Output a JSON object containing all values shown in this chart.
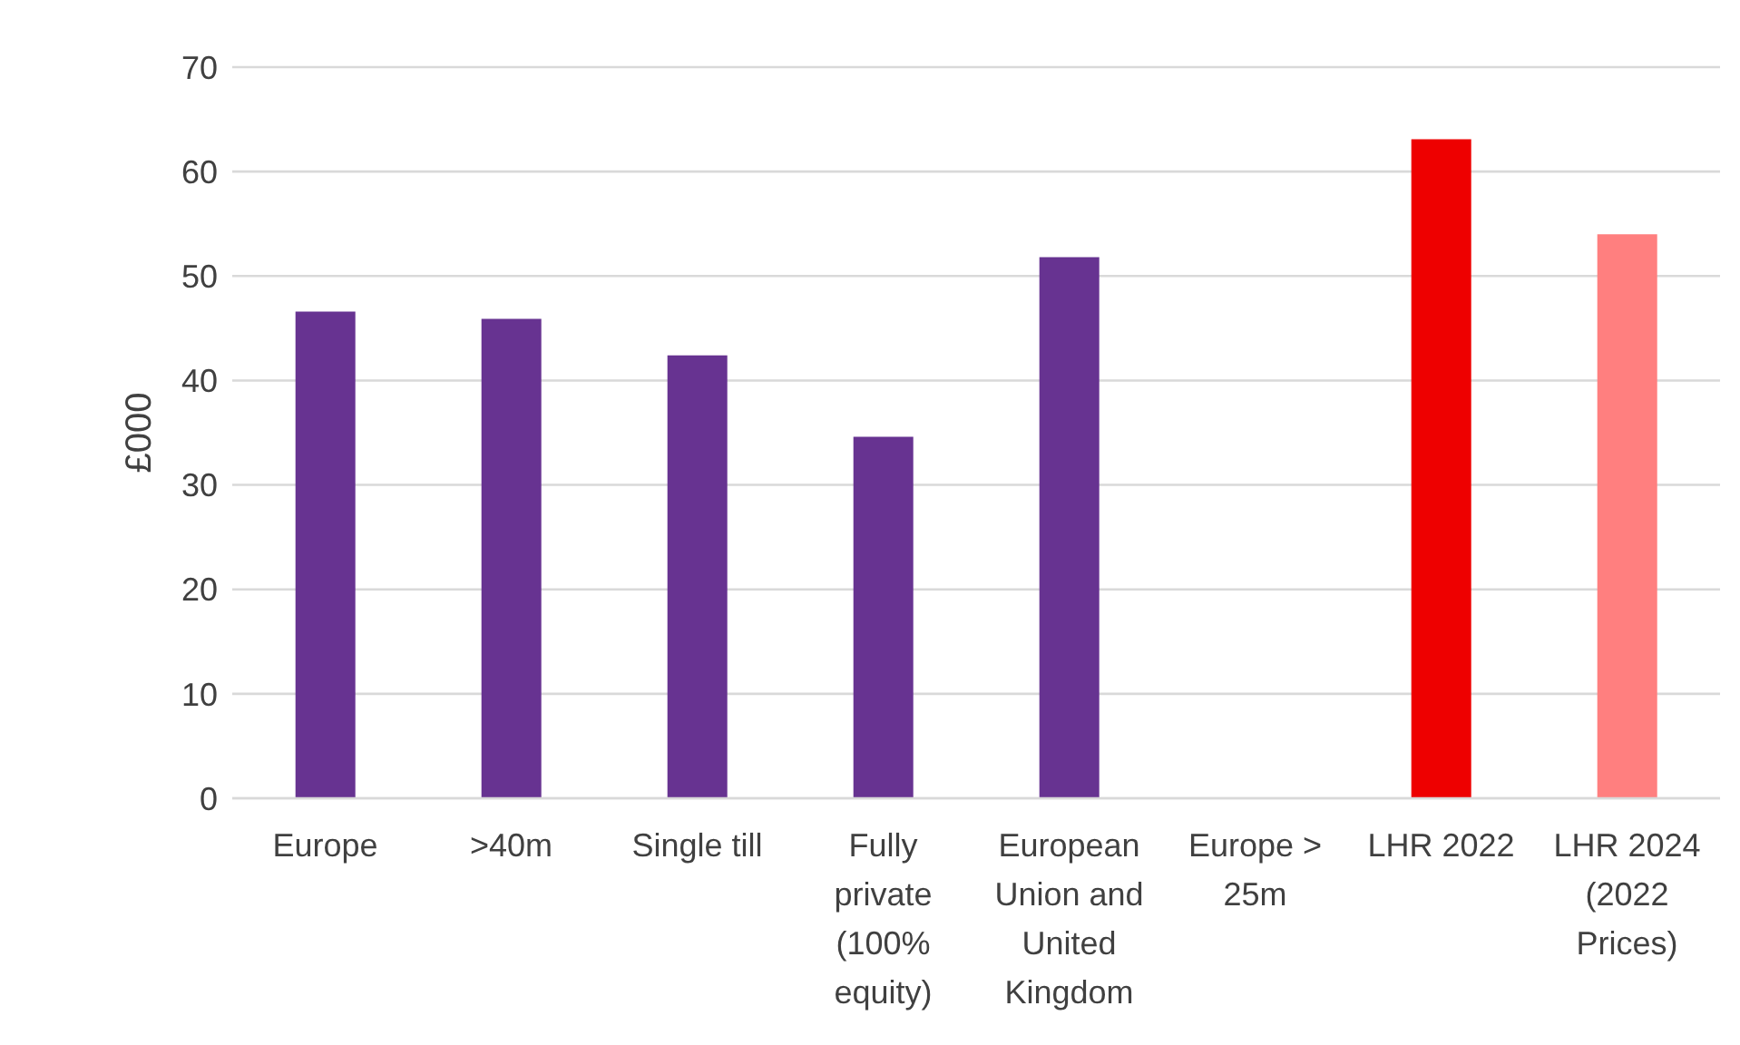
{
  "chart_data": {
    "type": "bar",
    "ylabel": "£000",
    "categories": [
      "Europe",
      ">40m",
      "Single till",
      "Fully private (100% equity)",
      "European Union and United Kingdom",
      "Europe > 25m",
      "LHR 2022",
      "LHR 2024 (2022 Prices)"
    ],
    "values": [
      46.6,
      45.9,
      42.4,
      34.6,
      51.8,
      null,
      63.1,
      54.0
    ],
    "colors": [
      "#673391",
      "#673391",
      "#673391",
      "#673391",
      "#673391",
      "#673391",
      "#ee0000",
      "#ff7f7f"
    ],
    "ylim": [
      0,
      70
    ],
    "yticks": [
      0,
      10,
      20,
      30,
      40,
      50,
      60,
      70
    ],
    "grid": "y",
    "legend": false
  }
}
